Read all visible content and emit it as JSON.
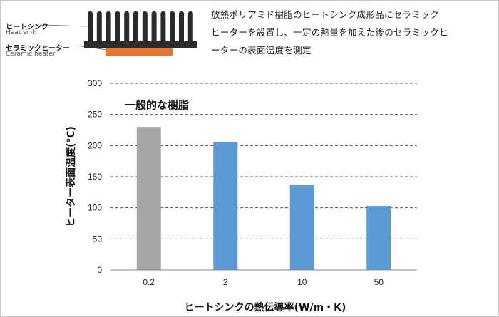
{
  "diagram": {
    "heatsink_label_jp": "ヒートシンク",
    "heatsink_label_en": "Heat sink",
    "heater_label_jp": "セラミックヒーター",
    "heater_label_en": "Ceramic heater",
    "heatsink_color": "#2b2b2b",
    "heater_color": "#e8762c"
  },
  "caption": {
    "line1": "放熱ポリアミド樹脂のヒートシンク成形品にセラミック",
    "line2": "ヒーターを設置し、一定の熱量を加えた後のセラミックヒ",
    "line3": "ーターの表面温度を測定"
  },
  "chart_data": {
    "type": "bar",
    "categories": [
      "0.2",
      "2",
      "10",
      "50"
    ],
    "values": [
      230,
      205,
      137,
      103
    ],
    "bar_colors": [
      "#a6a6a6",
      "#5b9bd5",
      "#5b9bd5",
      "#5b9bd5"
    ],
    "ylabel": "ヒーター表面温度(℃)",
    "xlabel": "ヒートシンクの熱伝導率(W/m・K)",
    "ylim": [
      0,
      300
    ],
    "yticks": [
      0,
      50,
      100,
      150,
      200,
      250,
      300
    ],
    "grid": "dashed-horizontal",
    "annotation": {
      "text": "一般的な樹脂",
      "y": 250
    }
  }
}
